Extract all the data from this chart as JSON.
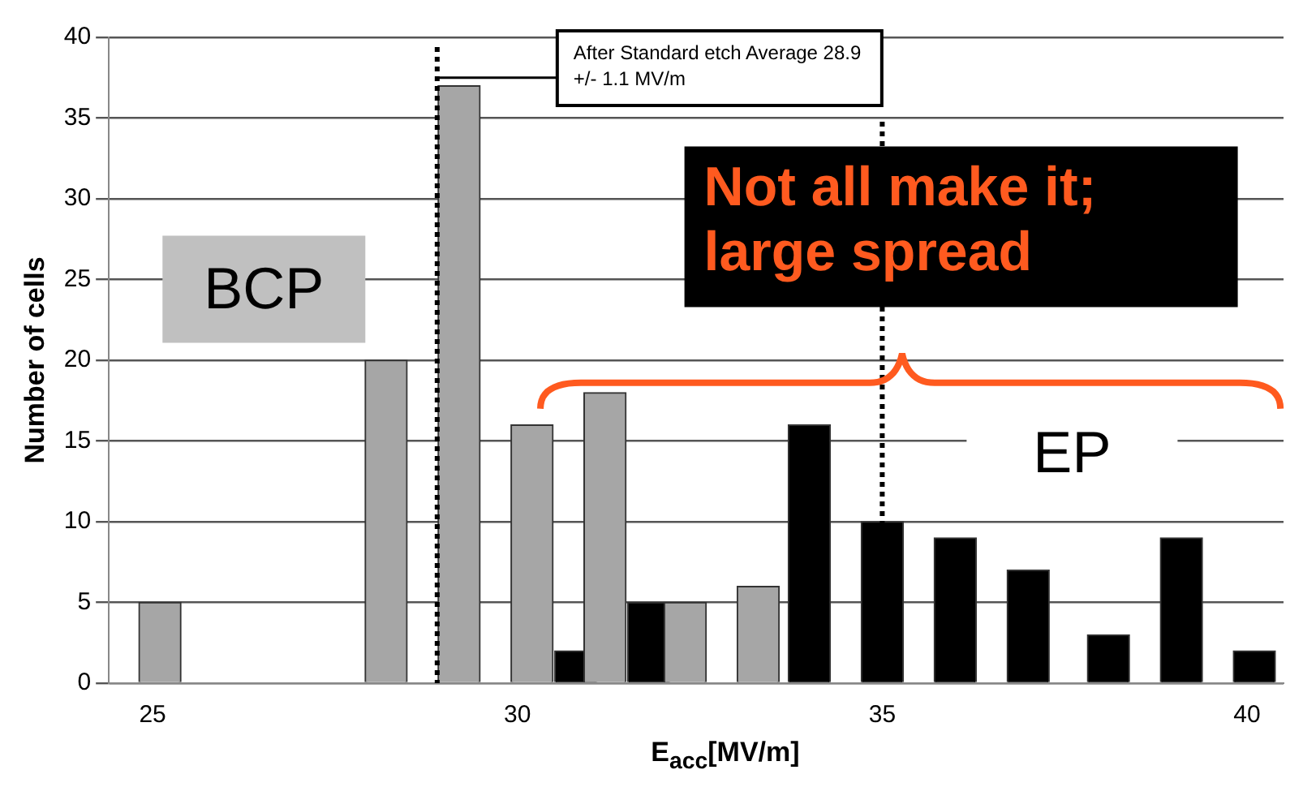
{
  "chart_data": {
    "type": "bar",
    "xlabel": "E$_{acc}$[MV/m]",
    "ylabel": "Number of cells",
    "xlim": [
      24.4,
      40.5
    ],
    "xticks": [
      25,
      30,
      35,
      40
    ],
    "ylim": [
      0,
      40
    ],
    "yticks": [
      0,
      5,
      10,
      15,
      20,
      25,
      30,
      35,
      40
    ],
    "grid": "y",
    "legend": false,
    "series": [
      {
        "name": "BCP",
        "color": "#a6a6a6",
        "x": [
          25.1,
          28.2,
          29.2,
          30.2,
          31.2,
          32.3,
          33.3
        ],
        "values": [
          5,
          20,
          37,
          16,
          18,
          5,
          6
        ]
      },
      {
        "name": "EP",
        "color": "#000000",
        "x": [
          30.8,
          31.8,
          34,
          35,
          36,
          37,
          38.1,
          39.1,
          40.1
        ],
        "values": [
          2,
          5,
          16,
          10,
          9,
          7,
          3,
          9,
          2
        ]
      }
    ],
    "ref_lines": [
      {
        "axis": "x",
        "value": 28.9,
        "label": "After Standard etch Average 28.9 +/- 1.1 MV/m",
        "line_style": "dotted"
      },
      {
        "axis": "x",
        "value": 35,
        "line_style": "dotted"
      }
    ],
    "annotations": [
      "Not all make it; large spread"
    ]
  }
}
